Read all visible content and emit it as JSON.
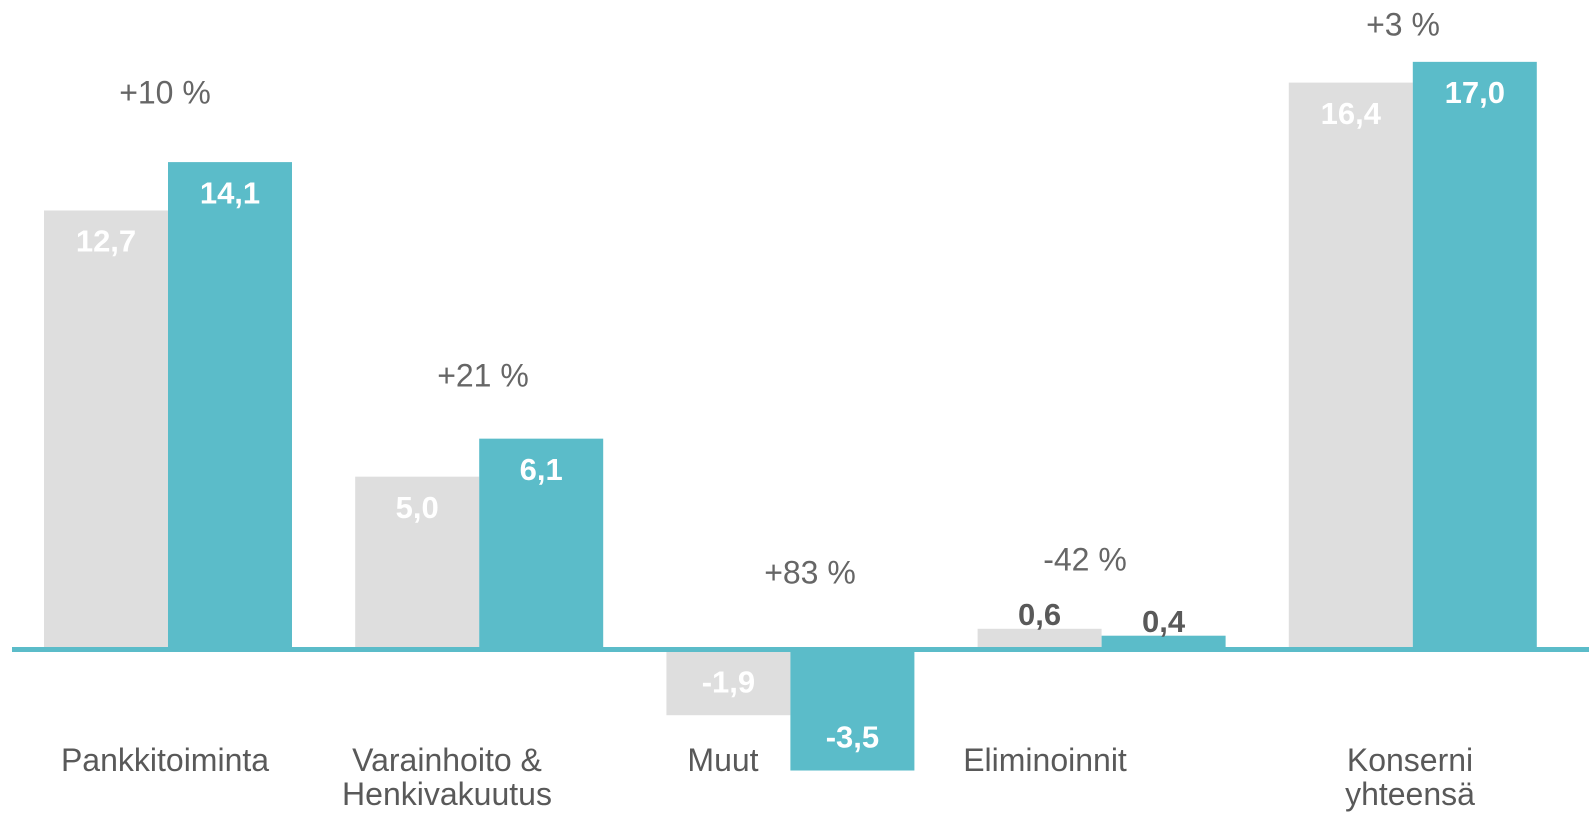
{
  "chart_data": {
    "type": "bar",
    "categories": [
      "Pankkitoiminta",
      "Varainhoito &\nHenkivakuutus",
      "Muut",
      "Eliminoinnit",
      "Konserni yhteensä"
    ],
    "series": [
      {
        "color": "#dedede",
        "values": [
          12.7,
          5.0,
          -1.9,
          0.6,
          16.4
        ],
        "value_labels": [
          "12,7",
          "5,0",
          "-1,9",
          "0,6",
          "16,4"
        ]
      },
      {
        "color": "#5bbcc9",
        "values": [
          14.1,
          6.1,
          -3.5,
          0.4,
          17.0
        ],
        "value_labels": [
          "14,1",
          "6,1",
          "-3,5",
          "0,4",
          "17,0"
        ]
      }
    ],
    "annotations": [
      "+10 %",
      "+21 %",
      "+83 %",
      "-42 %",
      "+3 %"
    ],
    "ylim": [
      -4.7,
      18.5
    ]
  }
}
